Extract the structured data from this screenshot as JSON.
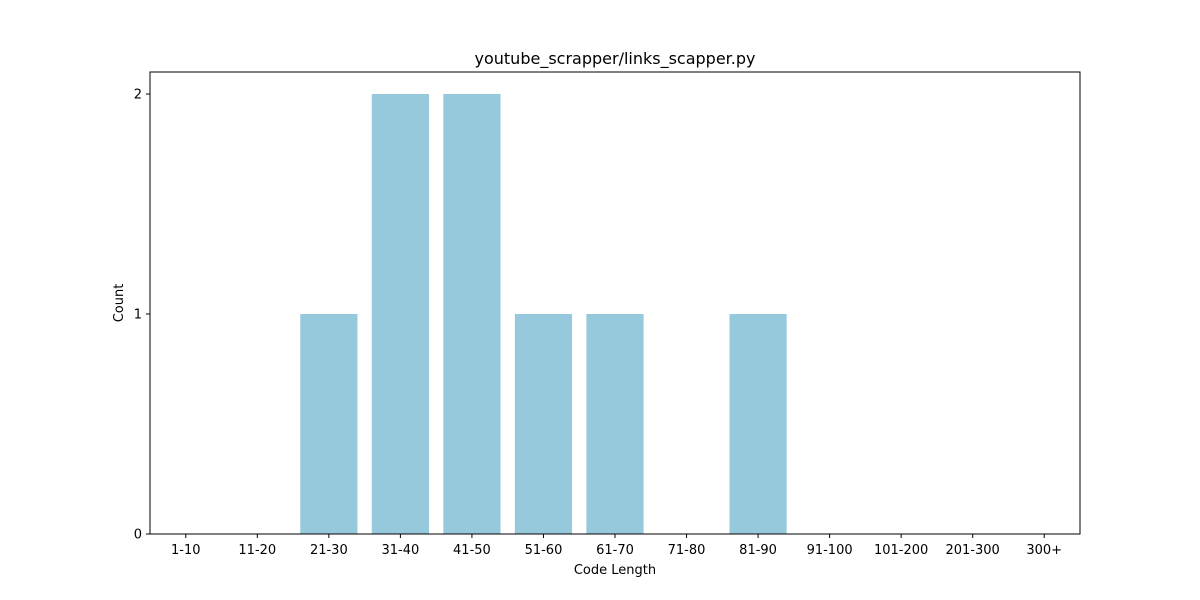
{
  "chart_data": {
    "type": "bar",
    "title": "youtube_scrapper/links_scapper.py",
    "xlabel": "Code Length",
    "ylabel": "Count",
    "categories": [
      "1-10",
      "11-20",
      "21-30",
      "31-40",
      "41-50",
      "51-60",
      "61-70",
      "71-80",
      "81-90",
      "91-100",
      "101-200",
      "201-300",
      "300+"
    ],
    "values": [
      0,
      0,
      1,
      2,
      2,
      1,
      1,
      0,
      1,
      0,
      0,
      0,
      0
    ],
    "ylim": [
      0,
      2.1
    ],
    "yticks": [
      "0",
      "1",
      "2"
    ],
    "bar_color": "#96c9dc",
    "grid": false,
    "legend": "none"
  }
}
